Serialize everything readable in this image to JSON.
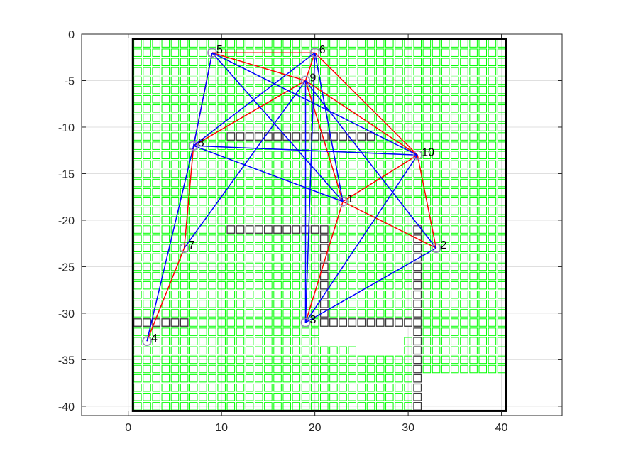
{
  "chart_data": {
    "type": "scatter",
    "title": "",
    "xlabel": "",
    "ylabel": "",
    "xlim": [
      -5,
      46.5
    ],
    "ylim": [
      -41,
      0
    ],
    "x_ticks": [
      0,
      10,
      20,
      30,
      40
    ],
    "x_tick_labels": [
      "0",
      "10",
      "20",
      "30",
      "40"
    ],
    "y_ticks": [
      0,
      -5,
      -10,
      -15,
      -20,
      -25,
      -30,
      -35,
      -40
    ],
    "y_tick_labels": [
      "0",
      "-5",
      "-10",
      "-15",
      "-20",
      "-25",
      "-30",
      "-35",
      "-40"
    ],
    "grid": true,
    "boundary": {
      "x": [
        0.5,
        40.5
      ],
      "y": [
        -40.5,
        -0.5
      ]
    },
    "grid_cells": {
      "x_range": [
        1,
        40
      ],
      "y_range": [
        -40,
        -1
      ],
      "cell_size": 1
    },
    "empty_regions": [
      {
        "x": [
          32,
          40
        ],
        "y": [
          -40,
          -37
        ]
      },
      {
        "x": [
          38,
          40
        ],
        "y": [
          -37,
          -37
        ]
      },
      {
        "x": [
          25,
          29
        ],
        "y": [
          -34,
          -33
        ]
      },
      {
        "x": [
          21,
          24
        ],
        "y": [
          -33,
          -32
        ]
      },
      {
        "x": [
          25,
          30
        ],
        "y": [
          -32,
          -32
        ]
      }
    ],
    "obstacles": [
      {
        "from": [
          11,
          -11
        ],
        "to": [
          26,
          -11
        ]
      },
      {
        "from": [
          11,
          -21
        ],
        "to": [
          21,
          -21
        ]
      },
      {
        "from": [
          21,
          -22
        ],
        "to": [
          21,
          -31
        ]
      },
      {
        "from": [
          22,
          -31
        ],
        "to": [
          30,
          -31
        ]
      },
      {
        "from": [
          31,
          -21
        ],
        "to": [
          31,
          -40
        ]
      },
      {
        "from": [
          1,
          -31
        ],
        "to": [
          6,
          -31
        ]
      }
    ],
    "nodes": [
      {
        "id": "1",
        "x": 23,
        "y": -18
      },
      {
        "id": "2",
        "x": 33,
        "y": -23
      },
      {
        "id": "3",
        "x": 19,
        "y": -31
      },
      {
        "id": "4",
        "x": 2,
        "y": -33
      },
      {
        "id": "5",
        "x": 9,
        "y": -2
      },
      {
        "id": "6",
        "x": 20,
        "y": -2
      },
      {
        "id": "7",
        "x": 6,
        "y": -23
      },
      {
        "id": "8",
        "x": 7,
        "y": -12
      },
      {
        "id": "9",
        "x": 19,
        "y": -5
      },
      {
        "id": "10",
        "x": 31,
        "y": -13
      }
    ],
    "series": [
      {
        "color": "#ff0000",
        "edges": [
          [
            "4",
            "7"
          ],
          [
            "7",
            "8"
          ],
          [
            "8",
            "5"
          ],
          [
            "5",
            "6"
          ],
          [
            "6",
            "9"
          ],
          [
            "9",
            "5"
          ],
          [
            "9",
            "8"
          ],
          [
            "9",
            "1"
          ],
          [
            "9",
            "10"
          ],
          [
            "1",
            "10"
          ],
          [
            "1",
            "2"
          ],
          [
            "2",
            "10"
          ],
          [
            "10",
            "6"
          ],
          [
            "1",
            "3"
          ]
        ]
      },
      {
        "color": "#0000ff",
        "edges": [
          [
            "4",
            "8"
          ],
          [
            "7",
            "9"
          ],
          [
            "5",
            "1"
          ],
          [
            "5",
            "10"
          ],
          [
            "8",
            "6"
          ],
          [
            "8",
            "10"
          ],
          [
            "8",
            "1"
          ],
          [
            "6",
            "1"
          ],
          [
            "9",
            "3"
          ],
          [
            "9",
            "2"
          ],
          [
            "6",
            "3"
          ],
          [
            "3",
            "10"
          ],
          [
            "3",
            "2"
          ],
          [
            "5",
            "8"
          ]
        ]
      }
    ],
    "colors": {
      "grid_cell": "#00ff00",
      "obstacle": "#3a3a3a",
      "node_marker": "#9b83bd",
      "boundary": "#000000",
      "axes": "#262626",
      "gridline": "#dfdfdf"
    }
  }
}
